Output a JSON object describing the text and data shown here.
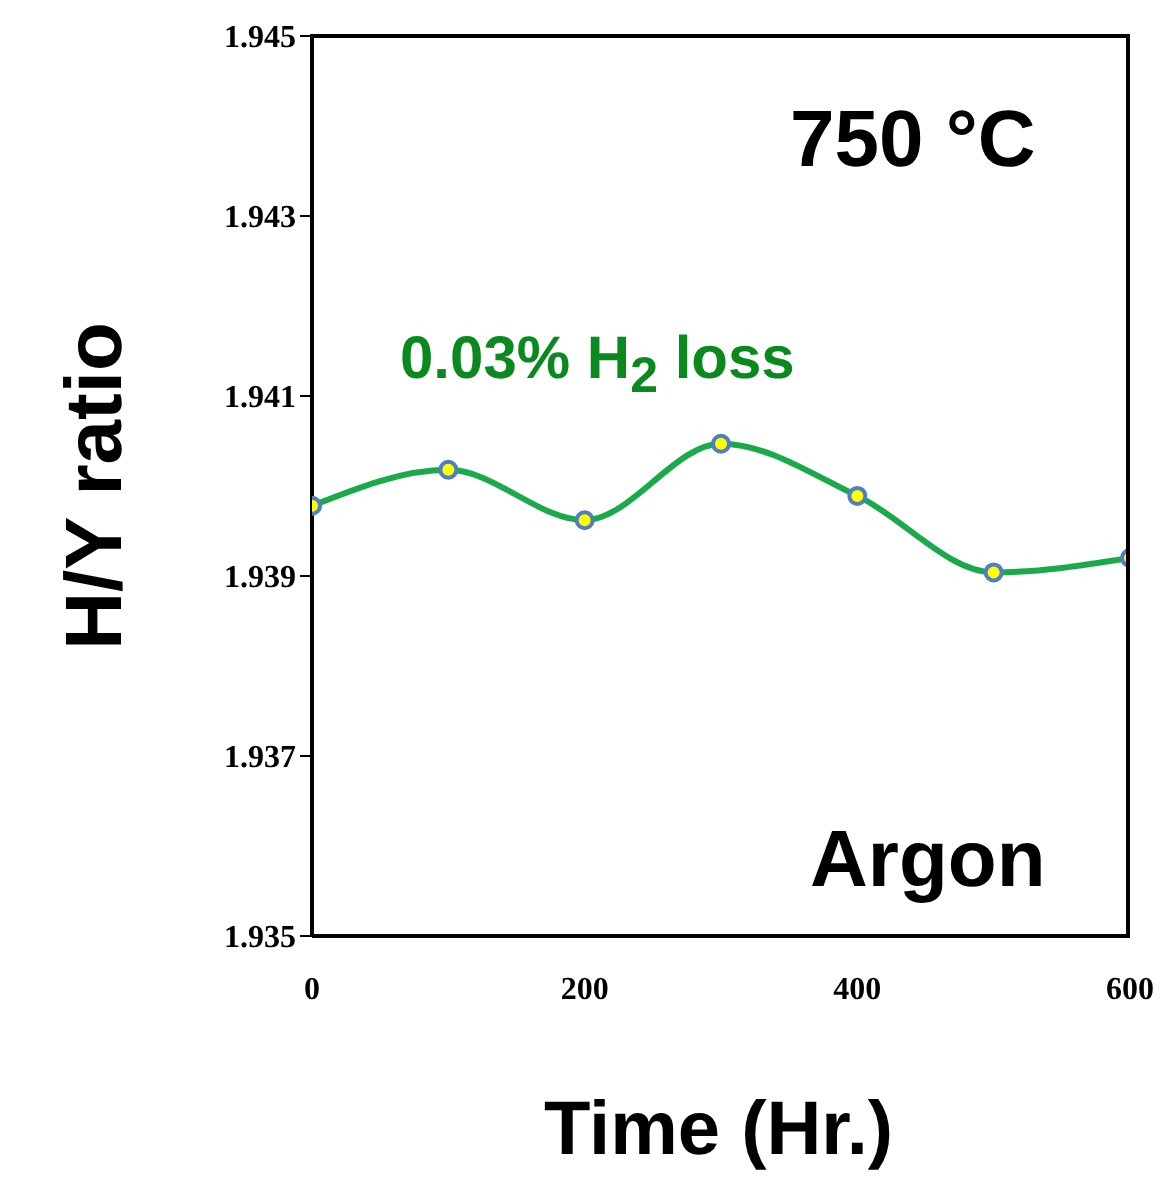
{
  "chart_data": {
    "type": "line",
    "xlabel": "Time (Hr.)",
    "ylabel": "H/Y ratio",
    "x": [
      0,
      100,
      200,
      300,
      400,
      500,
      600
    ],
    "series": [
      {
        "color": "#1aaa4a",
        "values": [
          1.93978,
          1.94018,
          1.93962,
          1.94047,
          1.93989,
          1.93904,
          1.9392
        ]
      }
    ],
    "xlim": [
      0,
      600
    ],
    "xticks": [
      0,
      200,
      400,
      600
    ],
    "ylim": [
      1.935,
      1.945
    ],
    "yticks": [
      1.935,
      1.937,
      1.939,
      1.941,
      1.943,
      1.945
    ],
    "marker": "circle",
    "annotations": [
      "750 °C",
      "0.03% H$_{2}$ loss",
      "Argon"
    ]
  }
}
